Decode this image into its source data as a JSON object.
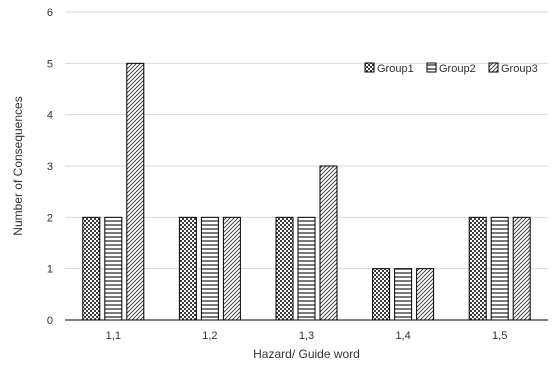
{
  "chart_data": {
    "type": "bar",
    "title": "",
    "xlabel": "Hazard/ Guide word",
    "ylabel": "Number of Consequences",
    "categories": [
      "1,1",
      "1,2",
      "1,3",
      "1,4",
      "1,5"
    ],
    "series": [
      {
        "name": "Group1",
        "values": [
          2,
          2,
          2,
          1,
          2
        ],
        "pattern": "checker"
      },
      {
        "name": "Group2",
        "values": [
          2,
          2,
          2,
          1,
          2
        ],
        "pattern": "horizontal-lines"
      },
      {
        "name": "Group3",
        "values": [
          5,
          2,
          3,
          1,
          2
        ],
        "pattern": "diagonal-lines"
      }
    ],
    "ylim": [
      0,
      6
    ],
    "yticks": [
      0,
      1,
      2,
      3,
      4,
      5,
      6
    ],
    "grid": "horizontal",
    "legend_position": "top-right",
    "colors": {
      "gridline": "#d9d9d9",
      "bar_outline": "#000000",
      "axis": "#000000",
      "text": "#333333"
    }
  }
}
